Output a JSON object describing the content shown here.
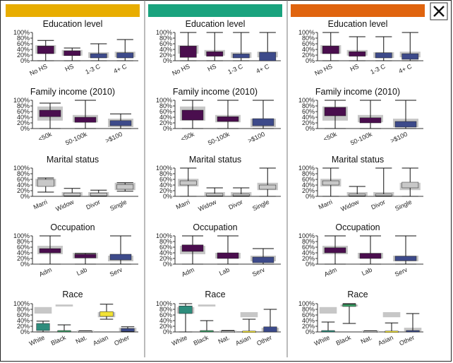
{
  "close_icon": "close-icon",
  "chart_data": {
    "type": "boxplot",
    "columns": [
      {
        "header_color": "#e8ad00"
      },
      {
        "header_color": "#1aa37e"
      },
      {
        "header_color": "#e0640e"
      }
    ],
    "y_ticks": [
      "0%",
      "20%",
      "40%",
      "60%",
      "80%",
      "100%"
    ],
    "ylim": [
      0,
      100
    ],
    "colors": {
      "background_box": "#c4c4c4",
      "Education level": "#4a0e4e",
      "Family income (2010)": [
        "#4a0e4e",
        "#3d1a5e",
        "#3b4a8a"
      ],
      "Marital status": [
        "#c8c8c8",
        "#c8c8c8",
        "#c8c8c8",
        "#c8c8c8"
      ],
      "Race": [
        "#2e8c7c",
        "#3a9d64",
        "#c8c8c8",
        "#f2e234",
        "#3b4a8a"
      ]
    },
    "panels": [
      {
        "title": "Education level",
        "categories": [
          "No HS",
          "HS",
          "1-3 C",
          "4+ C"
        ],
        "fill_colors": [
          "#4a0e4e",
          "#4a0e4e",
          "#3d4a8a",
          "#3d4a8a"
        ],
        "background": [
          [
            25,
            55
          ],
          [
            18,
            38
          ],
          [
            10,
            30
          ],
          [
            12,
            32
          ]
        ],
        "series": [
          [
            {
              "min": 0,
              "q1": 25,
              "q3": 52,
              "max": 72
            },
            {
              "min": 0,
              "q1": 18,
              "q3": 35,
              "max": 45
            },
            {
              "min": 0,
              "q1": 10,
              "q3": 25,
              "max": 60
            },
            {
              "min": 0,
              "q1": 10,
              "q3": 28,
              "max": 75
            }
          ],
          [
            {
              "min": 0,
              "q1": 12,
              "q3": 52,
              "max": 100
            },
            {
              "min": 0,
              "q1": 16,
              "q3": 32,
              "max": 100
            },
            {
              "min": 0,
              "q1": 10,
              "q3": 24,
              "max": 100
            },
            {
              "min": 0,
              "q1": 0,
              "q3": 30,
              "max": 100
            }
          ],
          [
            {
              "min": 0,
              "q1": 25,
              "q3": 52,
              "max": 100
            },
            {
              "min": 0,
              "q1": 16,
              "q3": 32,
              "max": 85
            },
            {
              "min": 0,
              "q1": 10,
              "q3": 28,
              "max": 85
            },
            {
              "min": 0,
              "q1": 5,
              "q3": 25,
              "max": 100
            }
          ]
        ]
      },
      {
        "title": "Family income (2010)",
        "categories": [
          "<50k",
          "50-100k",
          ">$100"
        ],
        "fill_colors": [
          "#4a0e4e",
          "#4a0e4e",
          "#3d4a8a"
        ],
        "background": [
          [
            28,
            78
          ],
          [
            22,
            48
          ],
          [
            5,
            35
          ]
        ],
        "series": [
          [
            {
              "min": 0,
              "q1": 42,
              "q3": 65,
              "max": 90
            },
            {
              "min": 0,
              "q1": 22,
              "q3": 40,
              "max": 100
            },
            {
              "min": 0,
              "q1": 10,
              "q3": 28,
              "max": 52
            }
          ],
          [
            {
              "min": 0,
              "q1": 30,
              "q3": 65,
              "max": 100
            },
            {
              "min": 0,
              "q1": 25,
              "q3": 42,
              "max": 100
            },
            {
              "min": 0,
              "q1": 10,
              "q3": 35,
              "max": 100
            }
          ],
          [
            {
              "min": 0,
              "q1": 45,
              "q3": 75,
              "max": 100
            },
            {
              "min": 0,
              "q1": 20,
              "q3": 38,
              "max": 100
            },
            {
              "min": 0,
              "q1": 5,
              "q3": 25,
              "max": 100
            }
          ]
        ]
      },
      {
        "title": "Marital status",
        "categories": [
          "Marri",
          "Widow",
          "Divor",
          "Single"
        ],
        "fill_colors": [
          "#c8c8c8",
          "#c8c8c8",
          "#c8c8c8",
          "#c8c8c8"
        ],
        "background": [
          [
            35,
            62
          ],
          [
            2,
            15
          ],
          [
            2,
            15
          ],
          [
            22,
            48
          ]
        ],
        "series": [
          [
            {
              "min": 15,
              "q1": 35,
              "q3": 60,
              "max": 65
            },
            {
              "min": 0,
              "q1": 2,
              "q3": 12,
              "max": 28
            },
            {
              "min": 0,
              "q1": 2,
              "q3": 12,
              "max": 22
            },
            {
              "min": 18,
              "q1": 25,
              "q3": 42,
              "max": 48
            }
          ],
          [
            {
              "min": 0,
              "q1": 40,
              "q3": 55,
              "max": 100
            },
            {
              "min": 0,
              "q1": 2,
              "q3": 10,
              "max": 30
            },
            {
              "min": 0,
              "q1": 2,
              "q3": 8,
              "max": 30
            },
            {
              "min": 0,
              "q1": 25,
              "q3": 40,
              "max": 100
            }
          ],
          [
            {
              "min": 0,
              "q1": 40,
              "q3": 55,
              "max": 100
            },
            {
              "min": 0,
              "q1": 2,
              "q3": 8,
              "max": 35
            },
            {
              "min": 0,
              "q1": 2,
              "q3": 8,
              "max": 100
            },
            {
              "min": 0,
              "q1": 30,
              "q3": 50,
              "max": 100
            }
          ]
        ]
      },
      {
        "title": "Occupation",
        "categories": [
          "Adm",
          "Lab",
          "Serv"
        ],
        "fill_colors": [
          "#4a0e4e",
          "#4a0e4e",
          "#3d4a8a"
        ],
        "background": [
          [
            35,
            65
          ],
          [
            20,
            40
          ],
          [
            10,
            30
          ]
        ],
        "series": [
          [
            {
              "min": 0,
              "q1": 40,
              "q3": 55,
              "max": 100
            },
            {
              "min": 0,
              "q1": 22,
              "q3": 35,
              "max": 38
            },
            {
              "min": 0,
              "q1": 15,
              "q3": 35,
              "max": 100
            }
          ],
          [
            {
              "min": 0,
              "q1": 45,
              "q3": 68,
              "max": 100
            },
            {
              "min": 0,
              "q1": 20,
              "q3": 40,
              "max": 100
            },
            {
              "min": 0,
              "q1": 5,
              "q3": 25,
              "max": 55
            }
          ],
          [
            {
              "min": 0,
              "q1": 40,
              "q3": 58,
              "max": 100
            },
            {
              "min": 0,
              "q1": 20,
              "q3": 38,
              "max": 100
            },
            {
              "min": 0,
              "q1": 12,
              "q3": 28,
              "max": 100
            }
          ]
        ]
      },
      {
        "title": "Race",
        "categories": [
          "White",
          "Black",
          "Nat.",
          "Asian",
          "Other"
        ],
        "fill_colors": [
          "#2e8c7c",
          "#3a9d64",
          "#c8c8c8",
          "#f2e234",
          "#3b4a8a"
        ],
        "background": [
          [
            65,
            88
          ],
          [
            90,
            97
          ],
          [
            0,
            5
          ],
          [
            52,
            70
          ],
          [
            2,
            15
          ]
        ],
        "series": [
          [
            {
              "min": 0,
              "q1": 5,
              "q3": 30,
              "max": 38
            },
            {
              "min": 0,
              "q1": 0,
              "q3": 5,
              "max": 25
            },
            {
              "min": 0,
              "q1": 0,
              "q3": 3,
              "max": 4
            },
            {
              "min": 45,
              "q1": 55,
              "q3": 72,
              "max": 98
            },
            {
              "min": 0,
              "q1": 2,
              "q3": 12,
              "max": 18
            }
          ],
          [
            {
              "min": 0,
              "q1": 65,
              "q3": 92,
              "max": 100
            },
            {
              "min": 0,
              "q1": 0,
              "q3": 5,
              "max": 40
            },
            {
              "min": 0,
              "q1": 0,
              "q3": 3,
              "max": 5
            },
            {
              "min": 0,
              "q1": 0,
              "q3": 3,
              "max": 45
            },
            {
              "min": 0,
              "q1": 0,
              "q3": 18,
              "max": 80
            }
          ],
          [
            {
              "min": 0,
              "q1": 0,
              "q3": 5,
              "max": 35
            },
            {
              "min": 30,
              "q1": 90,
              "q3": 98,
              "max": 100
            },
            {
              "min": 0,
              "q1": 0,
              "q3": 3,
              "max": 4
            },
            {
              "min": 0,
              "q1": 0,
              "q3": 3,
              "max": 32
            },
            {
              "min": 0,
              "q1": 0,
              "q3": 5,
              "max": 65
            }
          ]
        ]
      }
    ]
  }
}
